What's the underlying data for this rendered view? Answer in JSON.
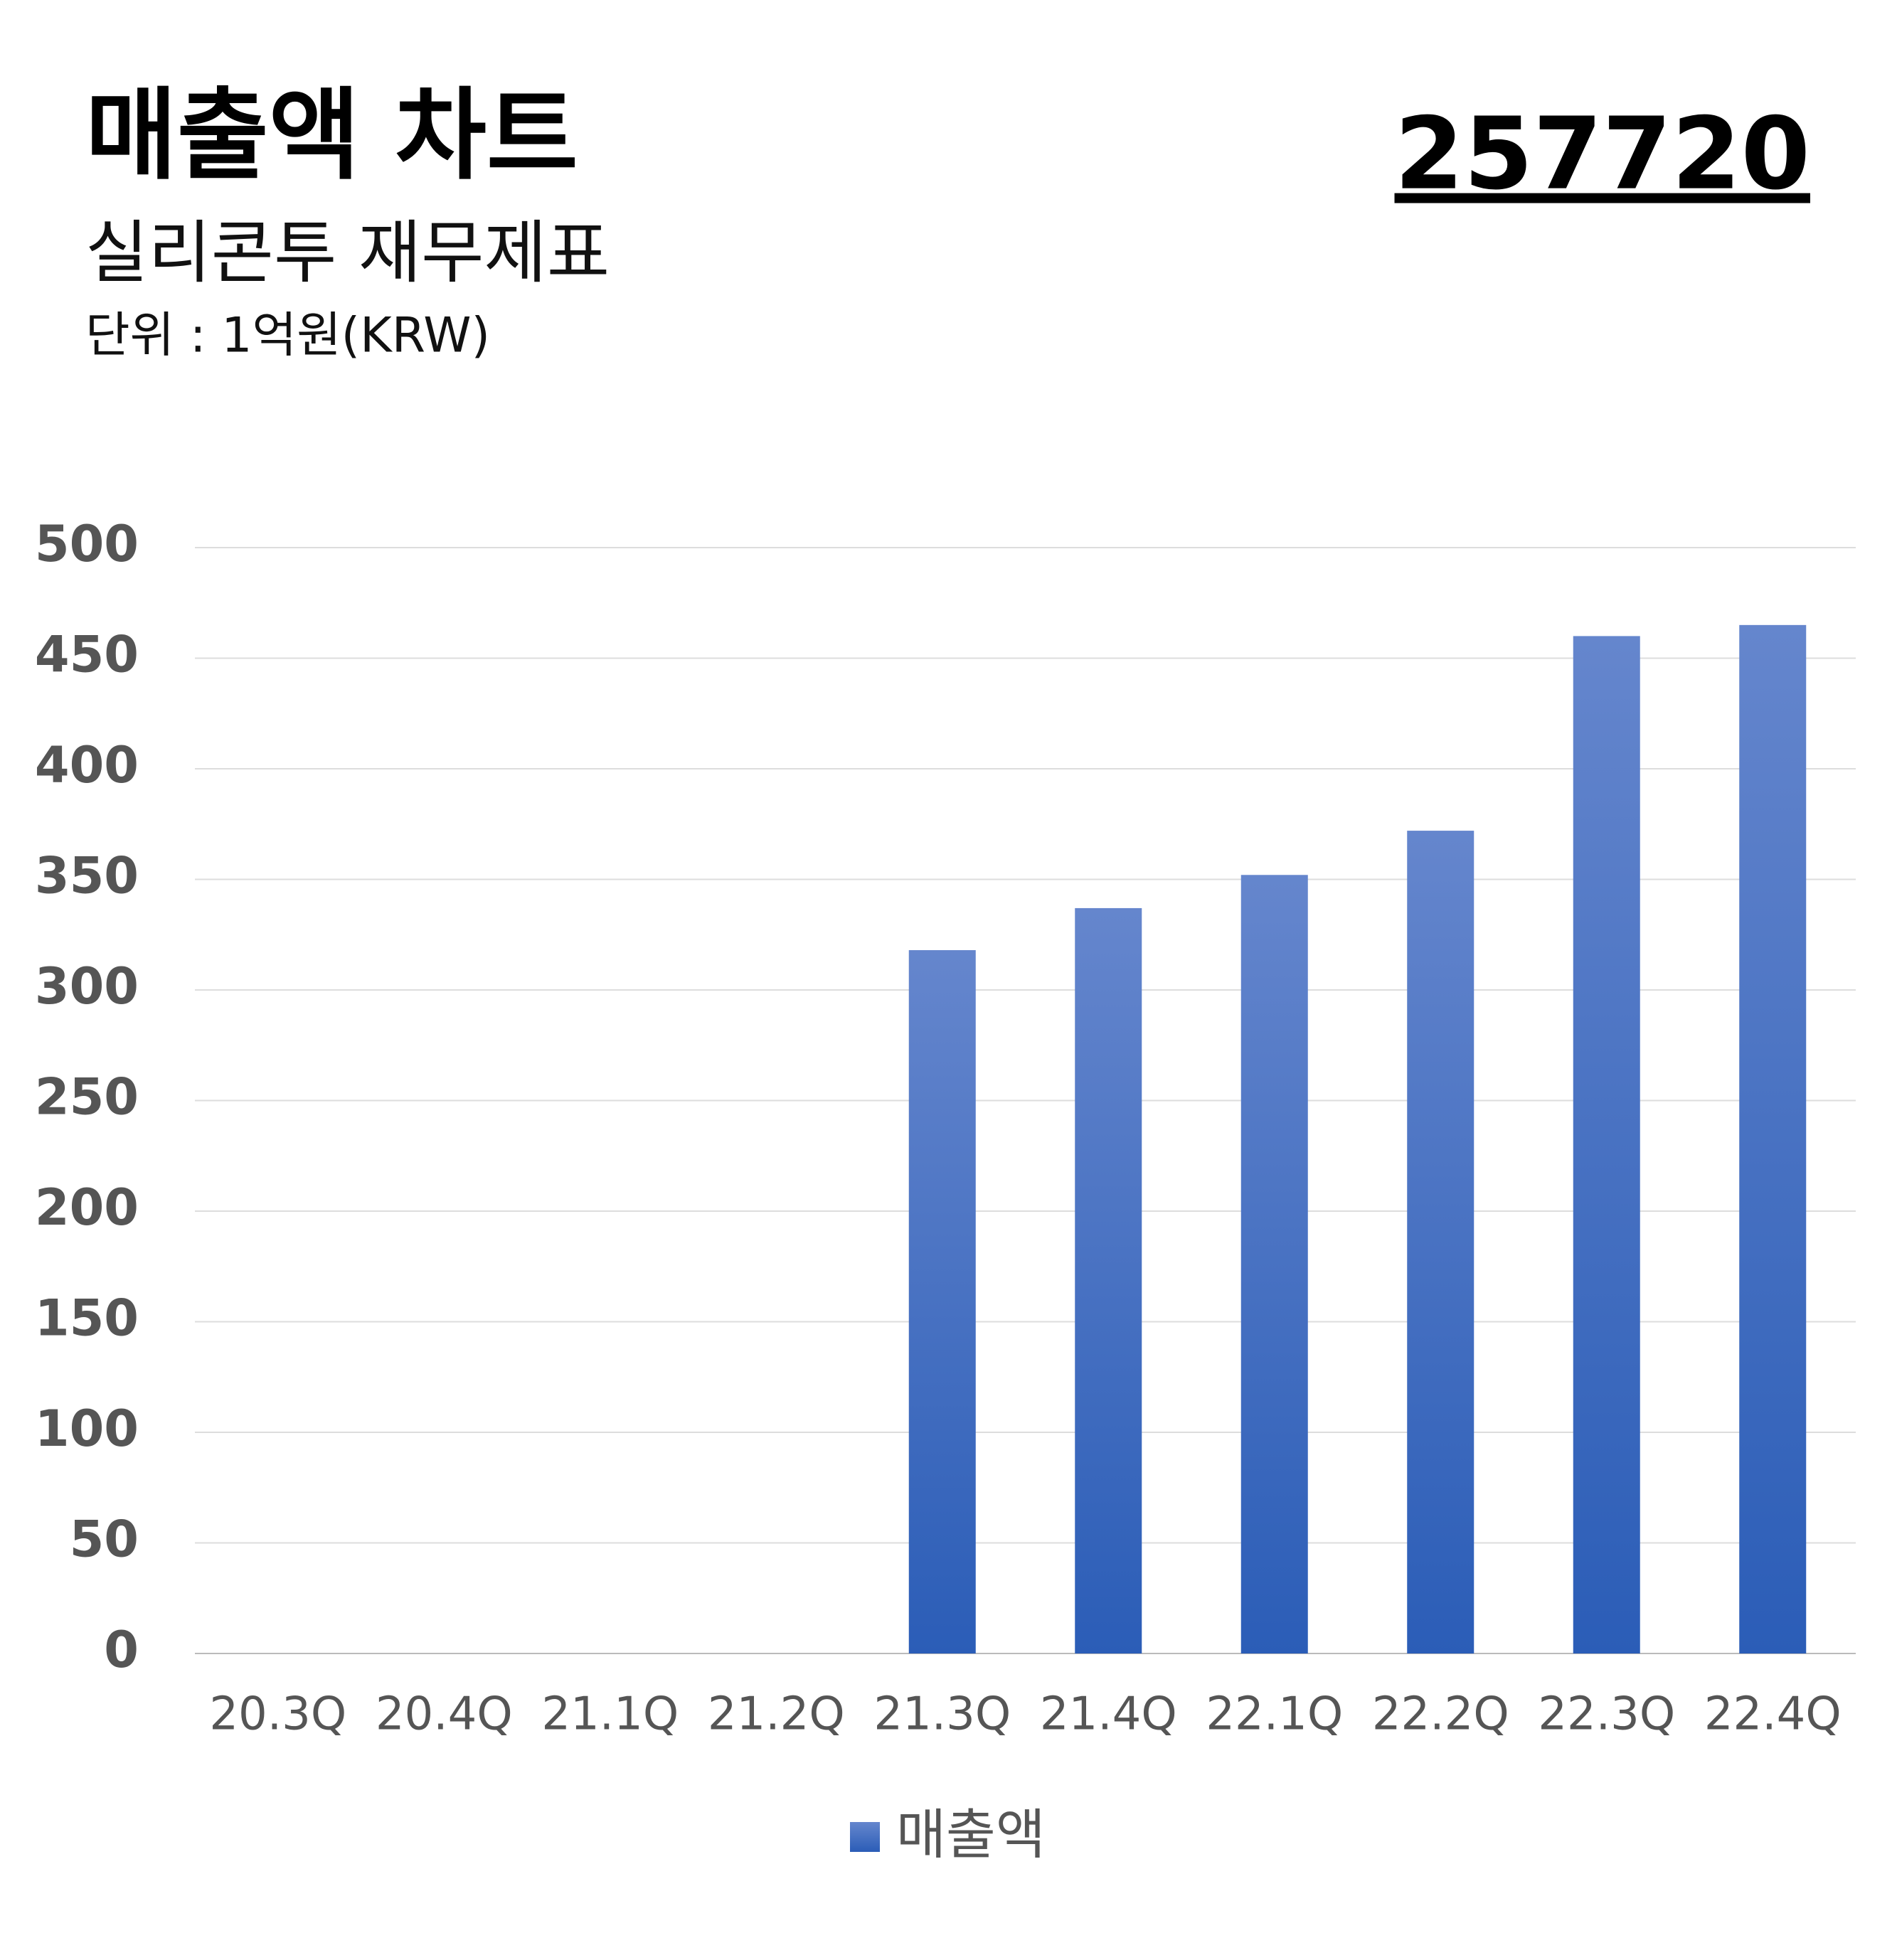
{
  "chart_data": {
    "type": "bar",
    "title": "매출액 차트",
    "subtitle": "실리콘투 재무제표",
    "unit_note": "단위 : 1억원(KRW)",
    "code": "257720",
    "categories": [
      "20.3Q",
      "20.4Q",
      "21.1Q",
      "21.2Q",
      "21.3Q",
      "21.4Q",
      "22.1Q",
      "22.2Q",
      "22.3Q",
      "22.4Q"
    ],
    "series": [
      {
        "name": "매출액",
        "color": "#4472c4",
        "values": [
          null,
          null,
          null,
          null,
          318,
          337,
          352,
          372,
          460,
          465
        ]
      }
    ],
    "ylim": [
      0,
      500
    ],
    "yticks": [
      0,
      50,
      100,
      150,
      200,
      250,
      300,
      350,
      400,
      450,
      500
    ],
    "grid": true,
    "legend": "bottom"
  }
}
